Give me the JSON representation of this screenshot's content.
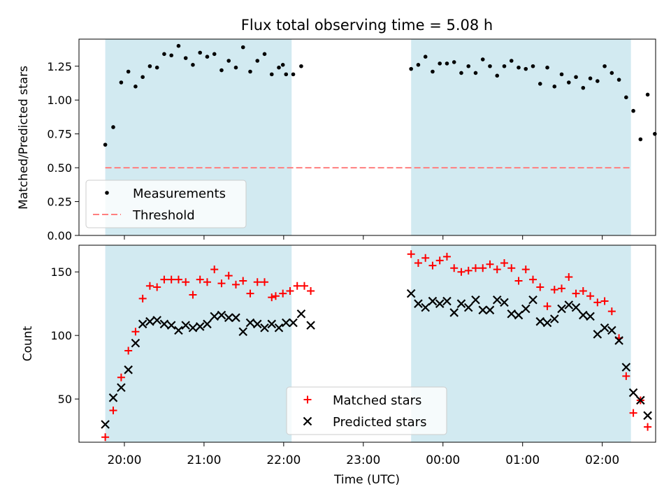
{
  "title": "Flux total observing time = 5.08 h",
  "xlabel": "Time (UTC)",
  "x_tick_labels": [
    "20:00",
    "21:00",
    "22:00",
    "23:00",
    "00:00",
    "01:00",
    "02:00"
  ],
  "colors": {
    "shade": "#add8e6",
    "measurement": "#000000",
    "threshold": "#ff7f7f",
    "matched": "#ff0000",
    "predicted": "#000000"
  },
  "chart_data": [
    {
      "type": "scatter",
      "panel": "top",
      "ylabel": "Matched/Predicted stars",
      "x_unit": "hours after 19:00 UTC",
      "xlim": [
        0.43,
        7.67
      ],
      "ylim": [
        0.0,
        1.45
      ],
      "y_ticks": [
        "0.00",
        "0.25",
        "0.50",
        "0.75",
        "1.00",
        "1.25"
      ],
      "grid": false,
      "legend_position": "lower-left",
      "shaded_intervals": [
        [
          0.76,
          3.1
        ],
        [
          4.6,
          7.36
        ]
      ],
      "threshold": {
        "name": "Threshold",
        "y": 0.5,
        "x_range": [
          0.76,
          7.36
        ]
      },
      "series": [
        {
          "name": "Measurements",
          "points": [
            [
              0.76,
              0.67
            ],
            [
              0.86,
              0.8
            ],
            [
              0.96,
              1.13
            ],
            [
              1.05,
              1.21
            ],
            [
              1.14,
              1.1
            ],
            [
              1.23,
              1.17
            ],
            [
              1.32,
              1.25
            ],
            [
              1.41,
              1.24
            ],
            [
              1.5,
              1.34
            ],
            [
              1.59,
              1.33
            ],
            [
              1.68,
              1.4
            ],
            [
              1.77,
              1.31
            ],
            [
              1.86,
              1.26
            ],
            [
              1.95,
              1.35
            ],
            [
              2.04,
              1.32
            ],
            [
              2.13,
              1.34
            ],
            [
              2.22,
              1.22
            ],
            [
              2.31,
              1.29
            ],
            [
              2.4,
              1.24
            ],
            [
              2.49,
              1.39
            ],
            [
              2.58,
              1.21
            ],
            [
              2.67,
              1.29
            ],
            [
              2.76,
              1.34
            ],
            [
              2.85,
              1.19
            ],
            [
              2.94,
              1.24
            ],
            [
              3.03,
              1.19
            ],
            [
              2.99,
              1.26
            ],
            [
              3.12,
              1.19
            ],
            [
              3.22,
              1.25
            ],
            [
              4.6,
              1.23
            ],
            [
              4.69,
              1.26
            ],
            [
              4.78,
              1.32
            ],
            [
              4.87,
              1.21
            ],
            [
              4.96,
              1.27
            ],
            [
              5.05,
              1.27
            ],
            [
              5.14,
              1.28
            ],
            [
              5.23,
              1.2
            ],
            [
              5.32,
              1.25
            ],
            [
              5.41,
              1.2
            ],
            [
              5.5,
              1.3
            ],
            [
              5.59,
              1.25
            ],
            [
              5.68,
              1.18
            ],
            [
              5.77,
              1.25
            ],
            [
              5.86,
              1.29
            ],
            [
              5.95,
              1.24
            ],
            [
              6.04,
              1.23
            ],
            [
              6.13,
              1.25
            ],
            [
              6.22,
              1.12
            ],
            [
              6.31,
              1.24
            ],
            [
              6.4,
              1.1
            ],
            [
              6.49,
              1.19
            ],
            [
              6.58,
              1.13
            ],
            [
              6.67,
              1.17
            ],
            [
              6.76,
              1.09
            ],
            [
              6.85,
              1.16
            ],
            [
              6.94,
              1.14
            ],
            [
              7.03,
              1.25
            ],
            [
              7.12,
              1.2
            ],
            [
              7.21,
              1.15
            ],
            [
              7.3,
              1.02
            ],
            [
              7.39,
              0.92
            ],
            [
              7.48,
              0.71
            ],
            [
              7.57,
              1.04
            ],
            [
              7.66,
              0.75
            ]
          ]
        }
      ]
    },
    {
      "type": "scatter",
      "panel": "bottom",
      "ylabel": "Count",
      "x_unit": "hours after 19:00 UTC",
      "xlim": [
        0.43,
        7.67
      ],
      "ylim": [
        16,
        171
      ],
      "y_ticks": [
        "50",
        "100",
        "150"
      ],
      "grid": false,
      "legend_position": "lower-center",
      "shaded_intervals": [
        [
          0.76,
          3.1
        ],
        [
          4.6,
          7.36
        ]
      ],
      "series": [
        {
          "name": "Matched stars",
          "marker": "+",
          "points": [
            [
              0.76,
              20
            ],
            [
              0.86,
              41
            ],
            [
              0.96,
              67
            ],
            [
              1.05,
              88
            ],
            [
              1.14,
              103
            ],
            [
              1.23,
              129
            ],
            [
              1.32,
              139
            ],
            [
              1.41,
              138
            ],
            [
              1.5,
              144
            ],
            [
              1.59,
              144
            ],
            [
              1.68,
              144
            ],
            [
              1.77,
              142
            ],
            [
              1.86,
              132
            ],
            [
              1.95,
              144
            ],
            [
              2.04,
              142
            ],
            [
              2.13,
              152
            ],
            [
              2.22,
              141
            ],
            [
              2.31,
              147
            ],
            [
              2.4,
              140
            ],
            [
              2.49,
              143
            ],
            [
              2.58,
              133
            ],
            [
              2.67,
              142
            ],
            [
              2.76,
              142
            ],
            [
              2.85,
              130
            ],
            [
              2.9,
              131
            ],
            [
              2.99,
              133
            ],
            [
              3.08,
              135
            ],
            [
              3.17,
              139
            ],
            [
              3.26,
              139
            ],
            [
              3.34,
              135
            ],
            [
              4.6,
              164
            ],
            [
              4.69,
              157
            ],
            [
              4.78,
              161
            ],
            [
              4.87,
              155
            ],
            [
              4.96,
              159
            ],
            [
              5.05,
              162
            ],
            [
              5.14,
              153
            ],
            [
              5.23,
              150
            ],
            [
              5.32,
              151
            ],
            [
              5.41,
              153
            ],
            [
              5.5,
              153
            ],
            [
              5.59,
              156
            ],
            [
              5.68,
              152
            ],
            [
              5.77,
              157
            ],
            [
              5.86,
              153
            ],
            [
              5.95,
              143
            ],
            [
              6.04,
              152
            ],
            [
              6.13,
              144
            ],
            [
              6.22,
              138
            ],
            [
              6.31,
              123
            ],
            [
              6.4,
              136
            ],
            [
              6.49,
              137
            ],
            [
              6.58,
              146
            ],
            [
              6.67,
              133
            ],
            [
              6.76,
              135
            ],
            [
              6.85,
              131
            ],
            [
              6.94,
              126
            ],
            [
              7.03,
              127
            ],
            [
              7.12,
              119
            ],
            [
              7.21,
              98
            ],
            [
              7.3,
              68
            ],
            [
              7.39,
              39
            ],
            [
              7.48,
              49
            ],
            [
              7.57,
              28
            ]
          ]
        },
        {
          "name": "Predicted stars",
          "marker": "x",
          "points": [
            [
              0.76,
              30
            ],
            [
              0.86,
              51
            ],
            [
              0.96,
              59
            ],
            [
              1.05,
              73
            ],
            [
              1.14,
              94
            ],
            [
              1.23,
              109
            ],
            [
              1.32,
              111
            ],
            [
              1.41,
              112
            ],
            [
              1.5,
              109
            ],
            [
              1.59,
              108
            ],
            [
              1.68,
              104
            ],
            [
              1.77,
              108
            ],
            [
              1.86,
              106
            ],
            [
              1.95,
              107
            ],
            [
              2.04,
              109
            ],
            [
              2.13,
              115
            ],
            [
              2.22,
              116
            ],
            [
              2.31,
              114
            ],
            [
              2.4,
              114
            ],
            [
              2.49,
              103
            ],
            [
              2.58,
              110
            ],
            [
              2.67,
              109
            ],
            [
              2.76,
              106
            ],
            [
              2.85,
              109
            ],
            [
              2.94,
              106
            ],
            [
              3.03,
              110
            ],
            [
              3.12,
              110
            ],
            [
              3.22,
              117
            ],
            [
              3.34,
              108
            ],
            [
              4.6,
              133
            ],
            [
              4.69,
              125
            ],
            [
              4.78,
              122
            ],
            [
              4.87,
              127
            ],
            [
              4.96,
              125
            ],
            [
              5.05,
              127
            ],
            [
              5.14,
              118
            ],
            [
              5.23,
              125
            ],
            [
              5.32,
              122
            ],
            [
              5.41,
              128
            ],
            [
              5.5,
              120
            ],
            [
              5.59,
              120
            ],
            [
              5.68,
              128
            ],
            [
              5.77,
              126
            ],
            [
              5.86,
              117
            ],
            [
              5.95,
              116
            ],
            [
              6.04,
              121
            ],
            [
              6.13,
              128
            ],
            [
              6.22,
              111
            ],
            [
              6.31,
              110
            ],
            [
              6.4,
              113
            ],
            [
              6.49,
              121
            ],
            [
              6.58,
              124
            ],
            [
              6.67,
              122
            ],
            [
              6.76,
              116
            ],
            [
              6.85,
              115
            ],
            [
              6.94,
              101
            ],
            [
              7.03,
              106
            ],
            [
              7.12,
              104
            ],
            [
              7.21,
              96
            ],
            [
              7.3,
              75
            ],
            [
              7.39,
              55
            ],
            [
              7.48,
              49
            ],
            [
              7.57,
              37
            ]
          ]
        }
      ]
    }
  ]
}
